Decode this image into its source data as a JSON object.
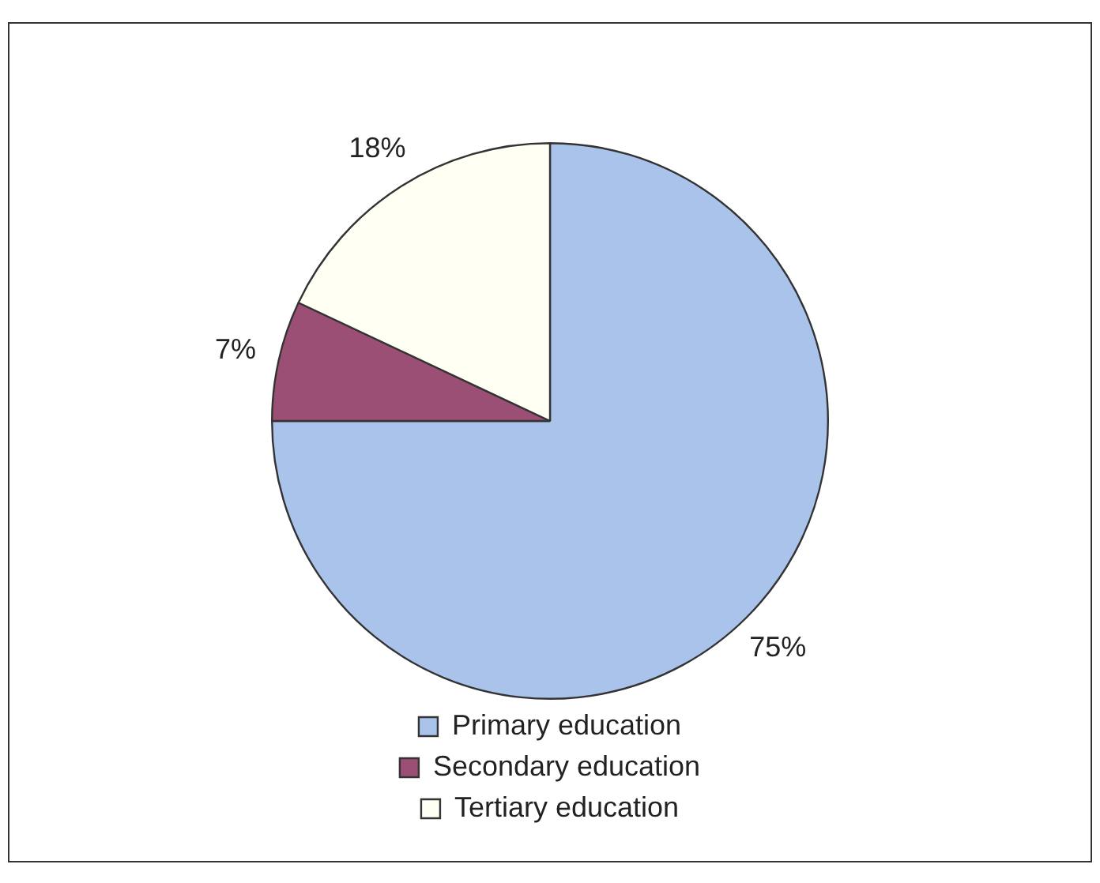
{
  "chart_data": {
    "type": "pie",
    "categories": [
      "Primary education",
      "Secondary education",
      "Tertiary education"
    ],
    "values": [
      75,
      7,
      18
    ],
    "colors": [
      "#a9c3ea",
      "#9c4f74",
      "#fffff4"
    ],
    "value_labels": [
      "75%",
      "7%",
      "18%"
    ],
    "legend": "bottom"
  }
}
